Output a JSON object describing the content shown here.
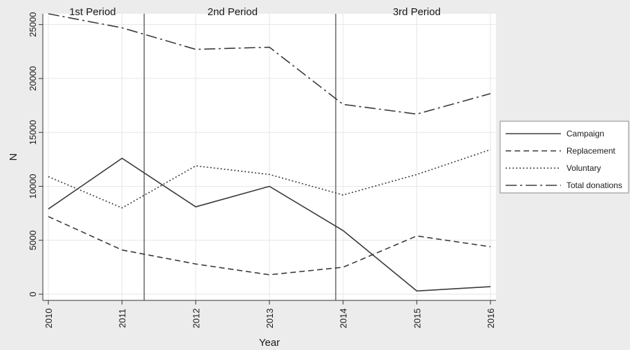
{
  "chart_data": {
    "type": "line",
    "xlabel": "Year",
    "ylabel": "N",
    "x": [
      2010,
      2011,
      2012,
      2013,
      2014,
      2015,
      2016
    ],
    "ylim": [
      0,
      26000
    ],
    "yticks": [
      0,
      5000,
      10000,
      15000,
      20000,
      25000
    ],
    "xlim": [
      2010,
      2016
    ],
    "grid": true,
    "legend_position": "right",
    "series": [
      {
        "name": "Campaign",
        "values": [
          7900,
          12600,
          8100,
          10000,
          5900,
          300,
          700
        ],
        "dash": "solid"
      },
      {
        "name": "Replacement",
        "values": [
          7200,
          4100,
          2800,
          1800,
          2500,
          5400,
          4400
        ],
        "dash": "dashed"
      },
      {
        "name": "Voluntary",
        "values": [
          10900,
          8000,
          11900,
          11100,
          9200,
          11100,
          13400
        ],
        "dash": "dotted"
      },
      {
        "name": "Total donations",
        "values": [
          26000,
          24700,
          22700,
          22900,
          17600,
          16700,
          18600
        ],
        "dash": "dashdot"
      }
    ],
    "period_dividers": [
      2011.3,
      2013.9
    ],
    "periods": [
      {
        "label": "1st Period",
        "x": 2010.6
      },
      {
        "label": "2nd Period",
        "x": 2012.5
      },
      {
        "label": "3rd Period",
        "x": 2015.0
      }
    ]
  }
}
